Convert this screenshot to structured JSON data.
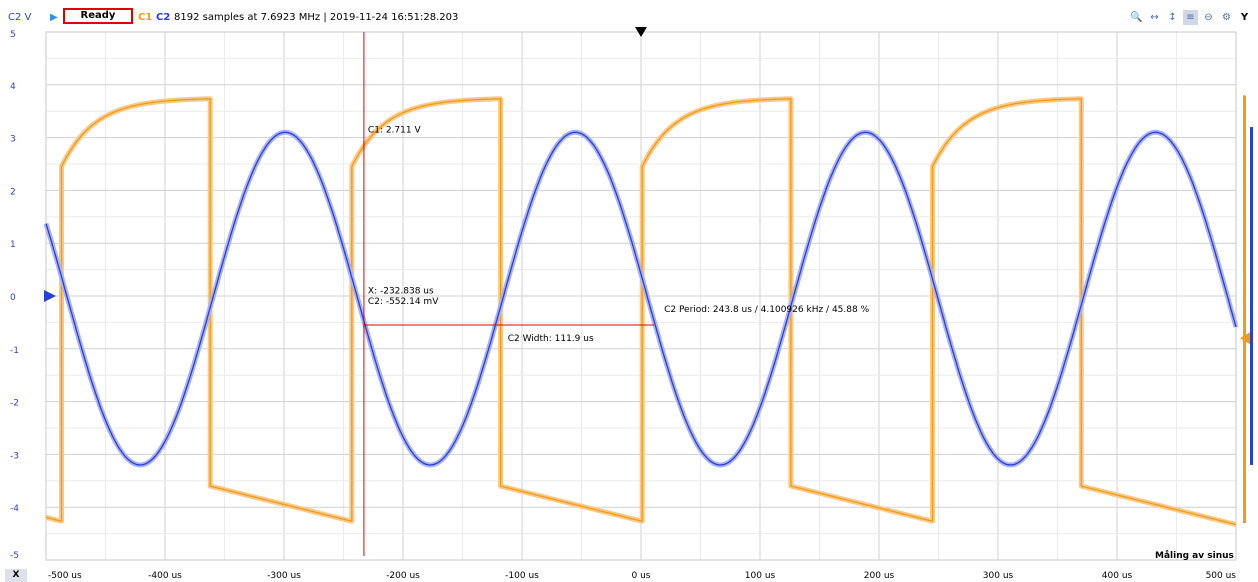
{
  "header": {
    "y_channel_label": "C2 V",
    "status": "Ready",
    "ch1_label": "C1",
    "ch2_label": "C2",
    "info": "8192 samples at 7.6923 MHz | 2019-11-24 16:51:28.203",
    "tools": [
      "zoom-in-icon",
      "zoom-fit-x-icon",
      "zoom-fit-y-icon",
      "cursor-icon",
      "zoom-out-icon",
      "settings-icon"
    ],
    "axis_toggle": "Y"
  },
  "x_axis_button": "X",
  "measurement_title": "Måling av sinus",
  "cursor": {
    "c1_readout": "C1: 2.711 V",
    "x_readout": "X: -232.838 us",
    "c2_readout": "C2: -552.14 mV"
  },
  "measurements": {
    "period": "C2 Period: 243.8 us / 4.100926 kHz / 45.88 %",
    "width": "C2 Width: 111.9 us"
  },
  "colors": {
    "c1": "#f39c12",
    "c2": "#2a3fd6",
    "cursor": "#e00000",
    "grid": "#d8d8d8"
  },
  "chart_data": {
    "type": "line",
    "x_unit": "us",
    "y_unit": "V",
    "xlim": [
      -500,
      500
    ],
    "ylim": [
      -5,
      5
    ],
    "x_ticks": [
      -500,
      -400,
      -300,
      -200,
      -100,
      0,
      100,
      200,
      300,
      400,
      500
    ],
    "x_tick_labels": [
      "-500 us",
      "-400 us",
      "-300 us",
      "-200 us",
      "-100 us",
      "0 us",
      "100 us",
      "200 us",
      "300 us",
      "400 us",
      "500 us"
    ],
    "y_ticks": [
      5,
      4,
      3,
      2,
      1,
      0,
      -1,
      -2,
      -3,
      -4,
      -5
    ],
    "y_tick_labels": [
      "5",
      "4",
      "3",
      "2",
      "1",
      "0",
      "-1",
      "-2",
      "-3",
      "-4",
      "-5"
    ],
    "grid": true,
    "series": [
      {
        "name": "C1",
        "kind": "rc-square",
        "period_us": 243.8,
        "rising_edges_us": [
          -487,
          -243,
          1,
          245
        ],
        "falling_edges_us": [
          -362,
          -118,
          126,
          370
        ],
        "high_start": 2.45,
        "high_end": 3.75,
        "low_start": -3.6,
        "low_end": -4.3
      },
      {
        "name": "C2",
        "kind": "sine",
        "amplitude": 3.15,
        "offset": -0.05,
        "period_us": 243.8,
        "peaks_us": [
          -299,
          -55,
          189,
          433
        ],
        "troughs_us": [
          -421,
          -177,
          67,
          311
        ]
      }
    ],
    "cursors": {
      "vertical_x_us": -232.838,
      "horizontal_level_v": -0.55,
      "measure_span_us": [
        -232.838,
        11
      ]
    },
    "trigger_x_us": 0,
    "c2_zero_marker_v": 0,
    "c1_marker_v": -0.8
  }
}
